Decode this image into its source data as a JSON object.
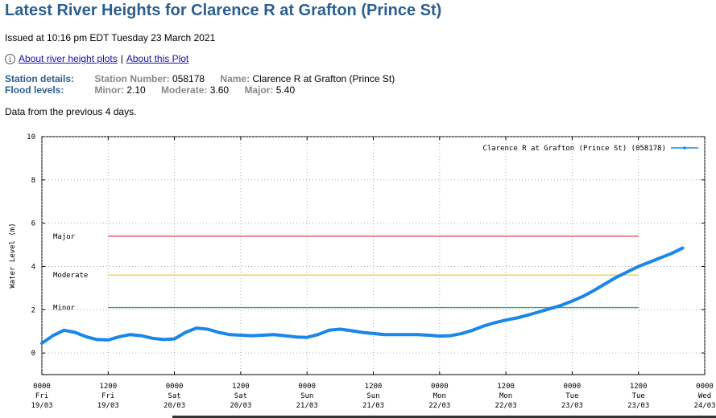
{
  "page": {
    "title": "Latest River Heights for Clarence R at Grafton (Prince St)",
    "issued": "Issued at 10:16 pm EDT Tuesday 23 March 2021",
    "link_about_plots": "About river height plots",
    "link_separator": "|",
    "link_about_this": "About this Plot",
    "station_heading": "Station details:",
    "station_number_label": "Station Number:",
    "station_number": "058178",
    "name_label": "Name:",
    "name_value": "Clarence R at Grafton (Prince St)",
    "flood_heading": "Flood levels:",
    "minor_label": "Minor:",
    "minor_value": "2.10",
    "moderate_label": "Moderate:",
    "moderate_value": "3.60",
    "major_label": "Major:",
    "major_value": "5.40",
    "note": "Data from the previous 4 days."
  },
  "chart_data": {
    "type": "line",
    "ylabel": "Water Level (m)",
    "ylim": [
      -1,
      10
    ],
    "yticks": [
      0,
      2,
      4,
      6,
      8,
      10
    ],
    "xlim": [
      0,
      120
    ],
    "x_unit": "hours from 0000 Fri 19/03",
    "xtick_values": [
      0,
      12,
      24,
      36,
      48,
      60,
      72,
      84,
      96,
      108,
      120
    ],
    "xticks": [
      [
        "0000",
        "Fri",
        "19/03"
      ],
      [
        "1200",
        "Fri",
        "19/03"
      ],
      [
        "0000",
        "Sat",
        "20/03"
      ],
      [
        "1200",
        "Sat",
        "20/03"
      ],
      [
        "0000",
        "Sun",
        "21/03"
      ],
      [
        "1200",
        "Sun",
        "21/03"
      ],
      [
        "0000",
        "Mon",
        "22/03"
      ],
      [
        "1200",
        "Mon",
        "22/03"
      ],
      [
        "0000",
        "Tue",
        "23/03"
      ],
      [
        "1200",
        "Tue",
        "23/03"
      ],
      [
        "0000",
        "Wed",
        "24/03"
      ]
    ],
    "grid": true,
    "legend_position": "top-right",
    "series": [
      {
        "name": "Clarence R at Grafton (Prince St) (058178)",
        "color": "#1a86e8",
        "x": [
          0,
          2,
          4,
          6,
          8,
          10,
          12,
          14,
          16,
          18,
          20,
          22,
          24,
          26,
          28,
          30,
          32,
          34,
          36,
          38,
          40,
          42,
          44,
          46,
          48,
          50,
          52,
          54,
          56,
          58,
          60,
          62,
          64,
          66,
          68,
          70,
          72,
          74,
          76,
          78,
          80,
          82,
          84,
          86,
          88,
          90,
          92,
          94,
          96,
          98,
          100,
          102,
          104,
          106,
          108,
          110,
          112,
          114,
          116
        ],
        "y": [
          0.45,
          0.8,
          1.05,
          0.95,
          0.75,
          0.62,
          0.6,
          0.75,
          0.85,
          0.8,
          0.68,
          0.62,
          0.65,
          0.95,
          1.15,
          1.1,
          0.95,
          0.85,
          0.82,
          0.8,
          0.82,
          0.85,
          0.8,
          0.74,
          0.72,
          0.85,
          1.05,
          1.1,
          1.03,
          0.95,
          0.9,
          0.85,
          0.85,
          0.85,
          0.85,
          0.82,
          0.78,
          0.8,
          0.9,
          1.05,
          1.25,
          1.4,
          1.52,
          1.62,
          1.75,
          1.9,
          2.05,
          2.2,
          2.4,
          2.62,
          2.9,
          3.2,
          3.5,
          3.75,
          4.0,
          4.2,
          4.4,
          4.6,
          4.85
        ]
      }
    ],
    "thresholds": [
      {
        "label": "Major",
        "value": 5.4,
        "color": "#e05050",
        "x_range": [
          12,
          108
        ]
      },
      {
        "label": "Moderate",
        "value": 3.6,
        "color": "#f7c948",
        "x_range": [
          12,
          108
        ]
      },
      {
        "label": "Minor",
        "value": 2.1,
        "color": "#3aa65a",
        "x_range": [
          12,
          108
        ]
      }
    ]
  }
}
